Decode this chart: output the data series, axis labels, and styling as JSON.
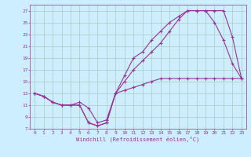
{
  "xlabel": "Windchill (Refroidissement éolien,°C)",
  "bg_color": "#cceeff",
  "grid_color": "#aaccbb",
  "line_color": "#993399",
  "xlim": [
    -0.5,
    23.5
  ],
  "ylim": [
    7,
    28
  ],
  "xticks": [
    0,
    1,
    2,
    3,
    4,
    5,
    6,
    7,
    8,
    9,
    10,
    11,
    12,
    13,
    14,
    15,
    16,
    17,
    18,
    19,
    20,
    21,
    22,
    23
  ],
  "yticks": [
    7,
    9,
    11,
    13,
    15,
    17,
    19,
    21,
    23,
    25,
    27
  ],
  "curve1_x": [
    0,
    1,
    2,
    3,
    4,
    5,
    6,
    7,
    8,
    9,
    10,
    11,
    12,
    13,
    14,
    15,
    16,
    17,
    18,
    19,
    20,
    21,
    22,
    23
  ],
  "curve1_y": [
    13,
    12.5,
    11.5,
    11,
    11,
    11,
    8,
    7.5,
    8,
    13,
    13.5,
    14,
    14.5,
    15,
    15.5,
    15.5,
    15.5,
    15.5,
    15.5,
    15.5,
    15.5,
    15.5,
    15.5,
    15.5
  ],
  "curve2_x": [
    0,
    1,
    2,
    3,
    4,
    5,
    6,
    7,
    8,
    9,
    10,
    11,
    12,
    13,
    14,
    15,
    16,
    17,
    18,
    19,
    20,
    21,
    22,
    23
  ],
  "curve2_y": [
    13,
    12.5,
    11.5,
    11,
    11,
    11.5,
    10.5,
    8,
    8.5,
    13,
    16,
    19,
    20,
    22,
    23.5,
    25,
    26,
    27,
    27,
    27,
    25,
    22,
    18,
    15.5
  ],
  "curve3_x": [
    0,
    1,
    2,
    3,
    4,
    5,
    6,
    7,
    8,
    9,
    10,
    11,
    12,
    13,
    14,
    15,
    16,
    17,
    18,
    19,
    20,
    21,
    22,
    23
  ],
  "curve3_y": [
    13,
    12.5,
    11.5,
    11,
    11,
    11,
    8,
    7.5,
    8,
    13,
    15,
    17,
    18.5,
    20,
    21.5,
    23.5,
    25.5,
    27,
    27,
    27,
    27,
    27,
    22.5,
    15.5
  ]
}
